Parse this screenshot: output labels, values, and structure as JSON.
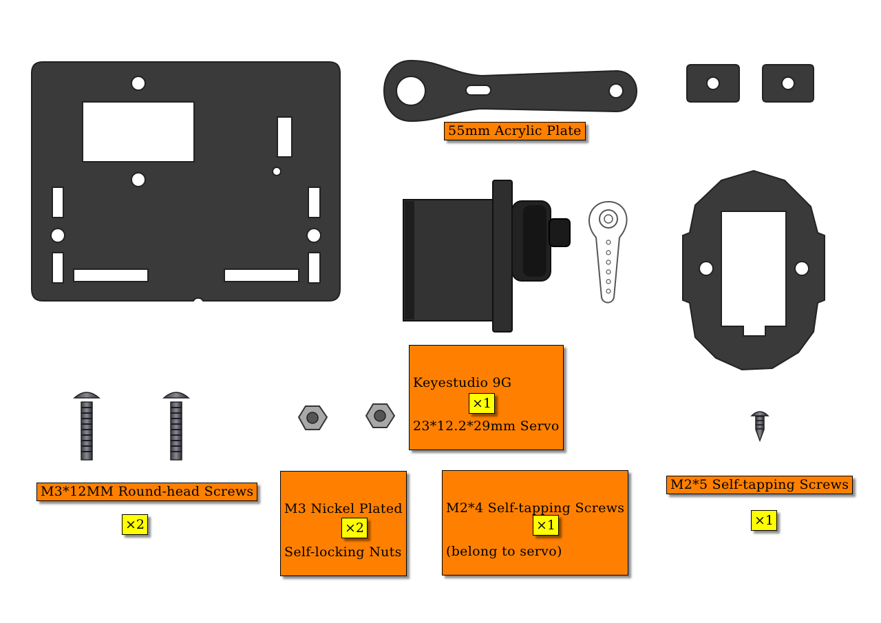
{
  "labels": {
    "acrylic_plate": "55mm Acrylic Plate",
    "servo": [
      "Keyestudio 9G",
      "23*12.2*29mm Servo"
    ],
    "m3_screws": "M3*12MM Round-head Screws",
    "m3_nuts": [
      "M3 Nickel Plated",
      "Self-locking Nuts"
    ],
    "m2x4_screws": [
      "M2*4 Self-tapping Screws",
      "(belong to servo)"
    ],
    "m2x5_screws": "M2*5 Self-tapping Screws"
  },
  "quantities": {
    "servo": "×1",
    "m3_screws": "×2",
    "m3_nuts": "×2",
    "m2x4_screws": "×1",
    "m2x5_screws": "×1"
  },
  "colors": {
    "part": "#3a3a3a",
    "label_bg": "#ff8000",
    "qty_bg": "#ffff00",
    "metal": "#9a9a9a"
  }
}
